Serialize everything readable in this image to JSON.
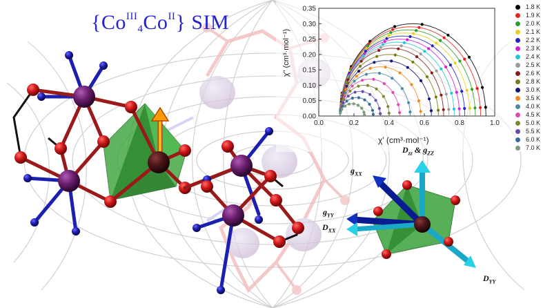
{
  "title": {
    "brace_open": "{",
    "co_a": "Co",
    "co_a_ox": "III",
    "co_a_sub": "4",
    "co_b": "Co",
    "co_b_ox": "II",
    "brace_close": "}",
    "tag": "SIM"
  },
  "axis_labels": {
    "yaxis": "χ\" (cm³·mol⁻¹)",
    "xaxis": "χ' (cm³·mol⁻¹)"
  },
  "molecule_labels": {
    "dzz_gzz": "D",
    "dzz_sub": "zz",
    "dzz_amp": " & g",
    "gzz_sub": "ZZ",
    "gxx": "g",
    "gxx_sub": "XX",
    "gyy": "g",
    "gyy_sub": "YY",
    "dxx": "D",
    "dxx_sub": "XX",
    "dyy": "D",
    "dyy_sub": "YY"
  },
  "colors": {
    "title": "#2323d0",
    "cobalt_iii": "#6b1f6e",
    "cobalt_ii": "#4a1618",
    "oxygen": "#c8161b",
    "nitrogen": "#1c1fb0",
    "polyhedron": "#3aa33a"
  },
  "chart_data": {
    "type": "scatter",
    "xlabel": "χ' (cm³·mol⁻¹)",
    "ylabel": "χ\" (cm³·mol⁻¹)",
    "xlim": [
      0.0,
      1.0
    ],
    "ylim": [
      0.0,
      0.35
    ],
    "xticks": [
      "0.0",
      "0.2",
      "0.4",
      "0.6",
      "0.8",
      "1.0"
    ],
    "yticks": [
      "0.00",
      "0.05",
      "0.10",
      "0.15",
      "0.20",
      "0.25",
      "0.30",
      "0.35"
    ],
    "grid": false,
    "legend_position": "right",
    "series": [
      {
        "name": "1.8 K",
        "color": "#000000",
        "chi_s": 0.12,
        "chi_t": 0.95,
        "peak": 0.3
      },
      {
        "name": "1.9 K",
        "color": "#e8201c",
        "chi_s": 0.12,
        "chi_t": 0.92,
        "peak": 0.29
      },
      {
        "name": "2.0 K",
        "color": "#2aa02a",
        "chi_s": 0.12,
        "chi_t": 0.89,
        "peak": 0.28
      },
      {
        "name": "2.1 K",
        "color": "#e6d21e",
        "chi_s": 0.12,
        "chi_t": 0.86,
        "peak": 0.27
      },
      {
        "name": "2.2 K",
        "color": "#2323c8",
        "chi_s": 0.12,
        "chi_t": 0.83,
        "peak": 0.26
      },
      {
        "name": "2.3 K",
        "color": "#d81fd0",
        "chi_s": 0.12,
        "chi_t": 0.8,
        "peak": 0.25
      },
      {
        "name": "2.4 K",
        "color": "#23c8d8",
        "chi_s": 0.12,
        "chi_t": 0.77,
        "peak": 0.24
      },
      {
        "name": "2.5 K",
        "color": "#9a9a9a",
        "chi_s": 0.12,
        "chi_t": 0.74,
        "peak": 0.23
      },
      {
        "name": "2.6 K",
        "color": "#8a1a1a",
        "chi_s": 0.12,
        "chi_t": 0.71,
        "peak": 0.22
      },
      {
        "name": "2.8 K",
        "color": "#7a7a10",
        "chi_s": 0.12,
        "chi_t": 0.68,
        "peak": 0.2
      },
      {
        "name": "3.0 K",
        "color": "#141478",
        "chi_s": 0.12,
        "chi_t": 0.64,
        "peak": 0.18
      },
      {
        "name": "3.5 K",
        "color": "#f08a1c",
        "chi_s": 0.12,
        "chi_t": 0.58,
        "peak": 0.16
      },
      {
        "name": "4.0 K",
        "color": "#4a8aa8",
        "chi_s": 0.12,
        "chi_t": 0.52,
        "peak": 0.14
      },
      {
        "name": "4.5 K",
        "color": "#e04ab0",
        "chi_s": 0.12,
        "chi_t": 0.46,
        "peak": 0.12
      },
      {
        "name": "5.0 K",
        "color": "#7a8a30",
        "chi_s": 0.12,
        "chi_t": 0.4,
        "peak": 0.1
      },
      {
        "name": "5.5 K",
        "color": "#6a4aa8",
        "chi_s": 0.12,
        "chi_t": 0.35,
        "peak": 0.08
      },
      {
        "name": "6.0 K",
        "color": "#3a6a9a",
        "chi_s": 0.12,
        "chi_t": 0.31,
        "peak": 0.06
      },
      {
        "name": "7.0 K",
        "color": "#7a9a7a",
        "chi_s": 0.12,
        "chi_t": 0.26,
        "peak": 0.04
      }
    ]
  }
}
